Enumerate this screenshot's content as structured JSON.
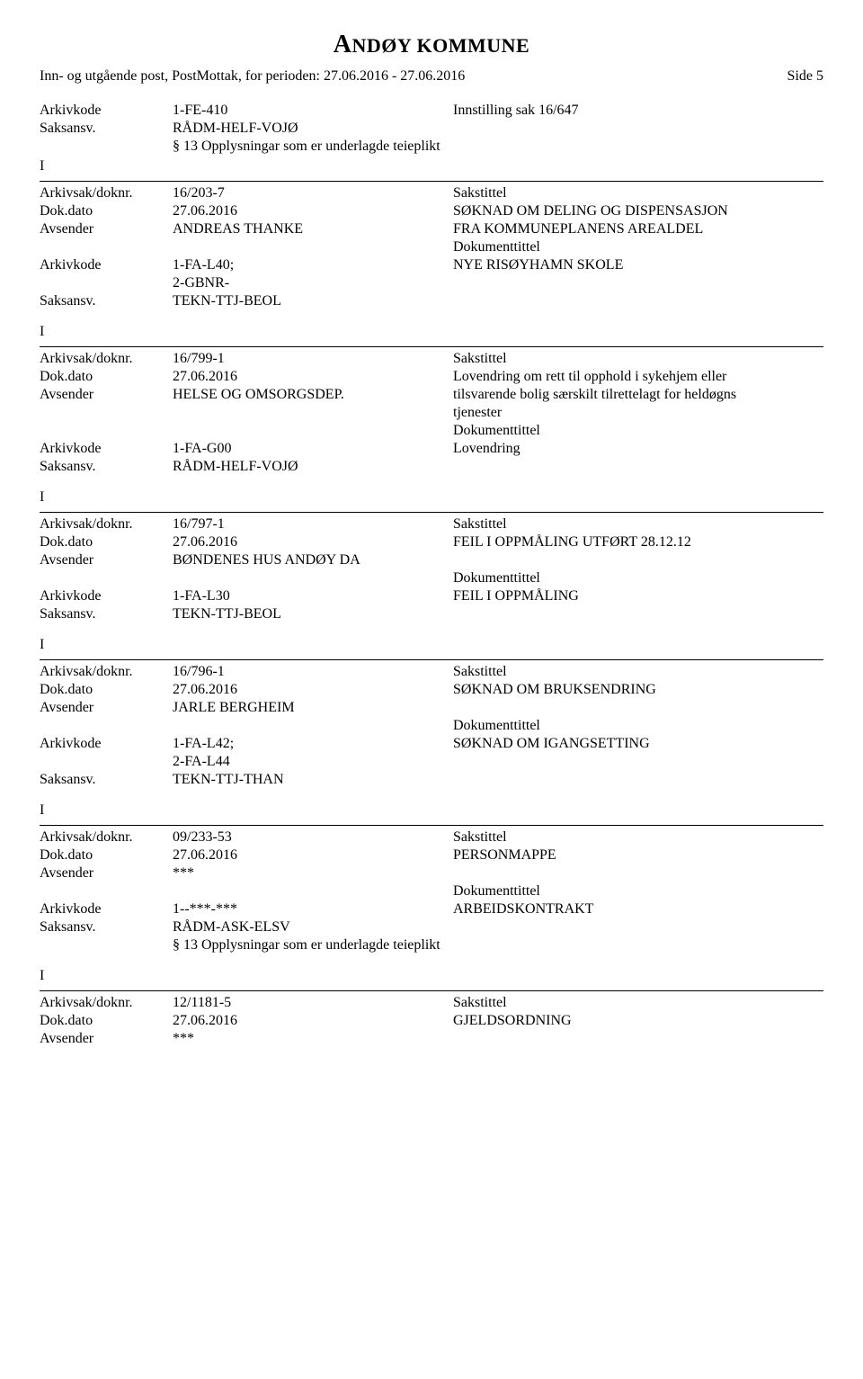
{
  "header": {
    "title_strong": "A",
    "title_rest_1": "NDØY ",
    "title_rest_2": "KOMMUNE",
    "subheading": "Inn- og utgående post, PostMottak, for perioden: 27.06.2016 - 27.06.2016",
    "side_label": "Side 5"
  },
  "labels": {
    "arkivkode": "Arkivkode",
    "saksansv": "Saksansv.",
    "io": "I",
    "arkivsak": "Arkivsak/doknr.",
    "dokdato": "Dok.dato",
    "avsender": "Avsender",
    "sakstittel": "Sakstittel",
    "dokumenttittel": "Dokumenttittel"
  },
  "records": [
    {
      "top": {
        "arkivkode": "1-FE-410",
        "innstilling": "Innstilling  sak 16/647",
        "saksansv": "RÅDM-HELF-VOJØ",
        "note": "§ 13 Opplysningar som er underlagde teieplikt"
      },
      "io": "I",
      "arkivsak": "16/203-7",
      "dokdato": "27.06.2016",
      "avsender": "ANDREAS THANKE",
      "sakstittel_lines": [
        "SØKNAD OM DELING OG DISPENSASJON",
        "FRA KOMMUNEPLANENS AREALDEL"
      ],
      "arkivkode": "1-FA-L40;\n2-GBNR-",
      "dokumenttittel": "NYE RISØYHAMN SKOLE",
      "saksansv": "TEKN-TTJ-BEOL"
    },
    {
      "io": "I",
      "arkivsak": "16/799-1",
      "dokdato": "27.06.2016",
      "avsender": "HELSE OG OMSORGSDEP.",
      "sakstittel_lines": [
        "Lovendring om rett til opphold i sykehjem eller",
        "tilsvarende bolig særskilt tilrettelagt for heldøgns",
        "tjenester"
      ],
      "arkivkode": "1-FA-G00",
      "dokumenttittel": "Lovendring",
      "saksansv": "RÅDM-HELF-VOJØ"
    },
    {
      "io": "I",
      "arkivsak": "16/797-1",
      "dokdato": "27.06.2016",
      "avsender": "BØNDENES HUS ANDØY DA",
      "sakstittel_lines": [
        "FEIL I OPPMÅLING UTFØRT 28.12.12"
      ],
      "arkivkode": "1-FA-L30",
      "dokumenttittel": "FEIL I OPPMÅLING",
      "saksansv": "TEKN-TTJ-BEOL"
    },
    {
      "io": "I",
      "arkivsak": "16/796-1",
      "dokdato": "27.06.2016",
      "avsender": "JARLE BERGHEIM",
      "sakstittel_lines": [
        "SØKNAD OM BRUKSENDRING"
      ],
      "arkivkode": "1-FA-L42;\n2-FA-L44",
      "dokumenttittel": "SØKNAD OM IGANGSETTING",
      "saksansv": "TEKN-TTJ-THAN"
    },
    {
      "io": "I",
      "arkivsak": "09/233-53",
      "dokdato": "27.06.2016",
      "avsender": "***",
      "sakstittel_lines": [
        "PERSONMAPPE"
      ],
      "arkivkode": "1--***-***",
      "dokumenttittel": "ARBEIDSKONTRAKT",
      "saksansv": "RÅDM-ASK-ELSV",
      "note": "§ 13 Opplysningar som er underlagde teieplikt"
    },
    {
      "io": "I",
      "arkivsak": "12/1181-5",
      "dokdato": "27.06.2016",
      "avsender": "***",
      "sakstittel_lines": [
        "GJELDSORDNING"
      ]
    }
  ]
}
